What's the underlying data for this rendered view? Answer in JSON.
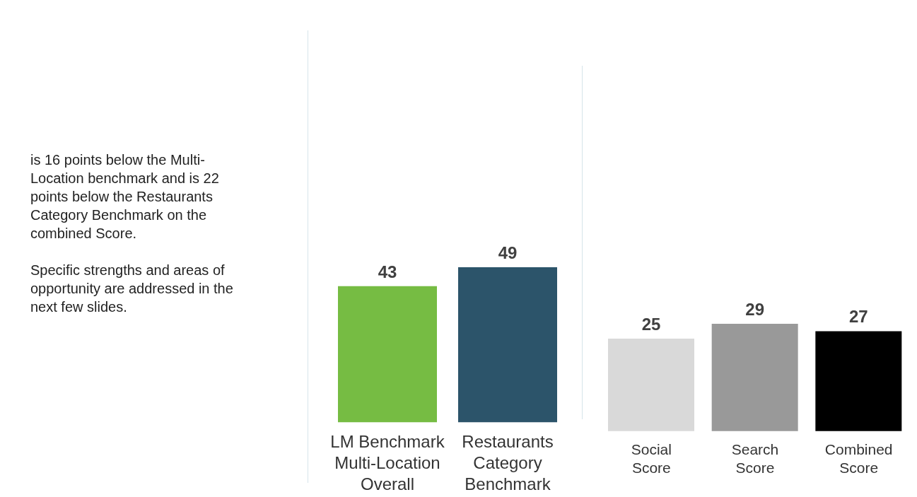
{
  "chart_data": [
    {
      "type": "bar",
      "categories": [
        "LM Benchmark Multi-Location Overall",
        "Restaurants Category Benchmark"
      ],
      "values": [
        43,
        49
      ],
      "colors": [
        "#76bc43",
        "#2c546a"
      ],
      "data_labels": true,
      "annotations": [
        "is 16 points below the Multi-Location benchmark and is 22 points below the Restaurants Category Benchmark on the combined Score.",
        "Specific strengths and areas of opportunity are addressed in the next few slides."
      ]
    },
    {
      "type": "bar",
      "categories": [
        "Social Score",
        "Search Score",
        "Combined Score"
      ],
      "values": [
        25,
        29,
        27
      ],
      "colors": [
        "#d9d9d9",
        "#999999",
        "#000000"
      ],
      "data_labels": true
    }
  ]
}
